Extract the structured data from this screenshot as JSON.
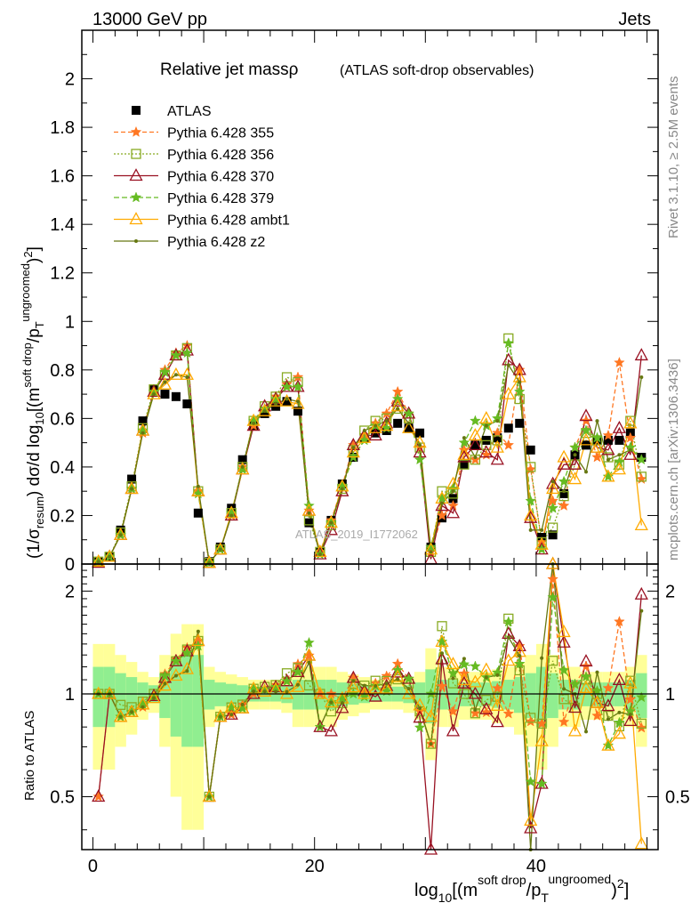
{
  "header": {
    "energy_label": "13000 GeV pp",
    "category_label": "Jets"
  },
  "title": {
    "main": "Relative jet massρ",
    "sub": "(ATLAS soft-drop observables)"
  },
  "side_labels": {
    "rivet": "Rivet 3.1.10, ≥ 2.5M events",
    "mcplots": "mcplots.cern.ch [arXiv:1306.3436]"
  },
  "watermark": "ATLAS_2019_I1772062",
  "upper_axis": {
    "ylabel": "(1/σresum) dσ/d log10[(msoft drop/pTungroomed)2]",
    "yticks": [
      "0",
      "0.2",
      "0.4",
      "0.6",
      "0.8",
      "1",
      "1.2",
      "1.4",
      "1.6",
      "1.8",
      "2"
    ]
  },
  "lower_axis": {
    "ylabel": "Ratio to ATLAS",
    "yticks_left": [
      "0.5",
      "1",
      "2"
    ],
    "yticks_right": [
      "0.5",
      "1",
      "2"
    ]
  },
  "x_axis": {
    "xlabel": "log10[(msoft drop/pTungroomed)2]",
    "xticks": [
      "0",
      "20",
      "40"
    ]
  },
  "legend": [
    {
      "label": "ATLAS",
      "color": "#000000",
      "marker": "square-filled",
      "dash": "none"
    },
    {
      "label": "Pythia 6.428 355",
      "color": "#ff7722",
      "marker": "star",
      "dash": "5,3"
    },
    {
      "label": "Pythia 6.428 356",
      "color": "#88aa22",
      "marker": "square-open",
      "dash": "2,2"
    },
    {
      "label": "Pythia 6.428 370",
      "color": "#991122",
      "marker": "triangle-open",
      "dash": "none"
    },
    {
      "label": "Pythia 6.428 379",
      "color": "#66bb22",
      "marker": "star",
      "dash": "6,3"
    },
    {
      "label": "Pythia 6.428 ambt1",
      "color": "#ffaa00",
      "marker": "triangle-open",
      "dash": "none"
    },
    {
      "label": "Pythia 6.428 z2",
      "color": "#667711",
      "marker": "dot",
      "dash": "none"
    }
  ],
  "chart_data": {
    "type": "line",
    "title": "Relative jet massρ (ATLAS soft-drop observables)",
    "xlabel": "log10[(msoft drop/pTungroomed)2]",
    "ylabel": "(1/σresum) dσ/d log10[(msoft drop/pTungroomed)2]",
    "xlim": [
      -1,
      51
    ],
    "ylim": [
      0,
      2.2
    ],
    "ratio_ylabel": "Ratio to ATLAS",
    "ratio_ylim": [
      0.35,
      2.4
    ],
    "ratio_scale": "log",
    "legend_position": "top-left",
    "grid": false,
    "x": [
      0.5,
      1.5,
      2.5,
      3.5,
      4.5,
      5.5,
      6.5,
      7.5,
      8.5,
      9.5,
      10.5,
      11.5,
      12.5,
      13.5,
      14.5,
      15.5,
      16.5,
      17.5,
      18.5,
      19.5,
      20.5,
      21.5,
      22.5,
      23.5,
      24.5,
      25.5,
      26.5,
      27.5,
      28.5,
      29.5,
      30.5,
      31.5,
      32.5,
      33.5,
      34.5,
      35.5,
      36.5,
      37.5,
      38.5,
      39.5,
      40.5,
      41.5,
      42.5,
      43.5,
      44.5,
      45.5,
      46.5,
      47.5,
      48.5,
      49.5
    ],
    "series": [
      {
        "name": "ATLAS",
        "color": "#000000",
        "values": [
          0.01,
          0.03,
          0.14,
          0.35,
          0.59,
          0.72,
          0.7,
          0.69,
          0.66,
          0.21,
          0.01,
          0.07,
          0.23,
          0.43,
          0.57,
          0.62,
          0.65,
          0.67,
          0.63,
          0.17,
          0.05,
          0.18,
          0.33,
          0.44,
          0.52,
          0.54,
          0.55,
          0.58,
          0.56,
          0.54,
          0.07,
          0.19,
          0.27,
          0.41,
          0.49,
          0.51,
          0.52,
          0.56,
          0.58,
          0.47,
          0.11,
          0.12,
          0.29,
          0.45,
          0.49,
          0.51,
          0.51,
          0.51,
          0.54,
          0.44
        ]
      },
      {
        "name": "Pythia 6.428 355",
        "color": "#ff7722",
        "values": [
          0.005,
          0.03,
          0.12,
          0.31,
          0.54,
          0.71,
          0.8,
          0.87,
          0.9,
          0.3,
          0.005,
          0.06,
          0.2,
          0.4,
          0.57,
          0.64,
          0.69,
          0.74,
          0.77,
          0.22,
          0.05,
          0.18,
          0.32,
          0.49,
          0.53,
          0.58,
          0.62,
          0.71,
          0.62,
          0.48,
          0.05,
          0.2,
          0.24,
          0.47,
          0.43,
          0.45,
          0.54,
          0.49,
          0.8,
          0.39,
          0.09,
          0.26,
          0.24,
          0.48,
          0.59,
          0.44,
          0.53,
          0.83,
          0.52,
          0.35
        ]
      },
      {
        "name": "Pythia 6.428 356",
        "color": "#88aa22",
        "values": [
          0.01,
          0.03,
          0.13,
          0.32,
          0.56,
          0.72,
          0.78,
          0.86,
          0.89,
          0.3,
          0.005,
          0.06,
          0.21,
          0.4,
          0.59,
          0.65,
          0.69,
          0.77,
          0.75,
          0.18,
          0.05,
          0.16,
          0.31,
          0.47,
          0.55,
          0.59,
          0.6,
          0.64,
          0.6,
          0.48,
          0.05,
          0.3,
          0.29,
          0.41,
          0.43,
          0.49,
          0.51,
          0.93,
          0.68,
          0.4,
          0.09,
          0.15,
          0.28,
          0.41,
          0.54,
          0.51,
          0.44,
          0.41,
          0.59,
          0.36
        ]
      },
      {
        "name": "Pythia 6.428 370",
        "color": "#991122",
        "values": [
          0.005,
          0.03,
          0.12,
          0.31,
          0.55,
          0.71,
          0.78,
          0.86,
          0.88,
          0.3,
          0.005,
          0.06,
          0.2,
          0.39,
          0.57,
          0.65,
          0.68,
          0.73,
          0.73,
          0.22,
          0.04,
          0.14,
          0.3,
          0.49,
          0.53,
          0.53,
          0.58,
          0.67,
          0.62,
          0.46,
          0.02,
          0.24,
          0.21,
          0.44,
          0.49,
          0.46,
          0.43,
          0.84,
          0.8,
          0.19,
          0.06,
          0.33,
          0.41,
          0.41,
          0.61,
          0.48,
          0.47,
          0.56,
          0.45,
          0.86
        ]
      },
      {
        "name": "Pythia 6.428 379",
        "color": "#66bb22",
        "values": [
          0.01,
          0.03,
          0.12,
          0.31,
          0.55,
          0.71,
          0.79,
          0.86,
          0.87,
          0.29,
          0.005,
          0.06,
          0.21,
          0.39,
          0.59,
          0.64,
          0.68,
          0.73,
          0.73,
          0.24,
          0.04,
          0.17,
          0.32,
          0.44,
          0.51,
          0.57,
          0.56,
          0.68,
          0.62,
          0.43,
          0.07,
          0.27,
          0.31,
          0.5,
          0.59,
          0.57,
          0.6,
          0.91,
          0.71,
          0.26,
          0.06,
          0.23,
          0.34,
          0.48,
          0.55,
          0.52,
          0.36,
          0.42,
          0.48,
          0.43
        ]
      },
      {
        "name": "Pythia 6.428 ambt1",
        "color": "#ffaa00",
        "values": [
          0.01,
          0.03,
          0.12,
          0.31,
          0.55,
          0.7,
          0.74,
          0.78,
          0.78,
          0.3,
          0.005,
          0.06,
          0.21,
          0.39,
          0.59,
          0.63,
          0.67,
          0.67,
          0.66,
          0.22,
          0.05,
          0.17,
          0.32,
          0.46,
          0.52,
          0.56,
          0.57,
          0.65,
          0.56,
          0.5,
          0.06,
          0.27,
          0.33,
          0.45,
          0.53,
          0.6,
          0.48,
          0.7,
          0.77,
          0.2,
          0.08,
          0.31,
          0.44,
          0.35,
          0.51,
          0.48,
          0.36,
          0.39,
          0.58,
          0.16
        ]
      },
      {
        "name": "Pythia 6.428 z2",
        "color": "#667711",
        "values": [
          0.01,
          0.03,
          0.12,
          0.31,
          0.54,
          0.7,
          0.75,
          0.78,
          0.77,
          0.32,
          0.005,
          0.06,
          0.2,
          0.4,
          0.58,
          0.63,
          0.66,
          0.68,
          0.67,
          0.21,
          0.04,
          0.17,
          0.31,
          0.48,
          0.55,
          0.57,
          0.59,
          0.64,
          0.58,
          0.49,
          0.05,
          0.25,
          0.3,
          0.52,
          0.44,
          0.57,
          0.59,
          0.82,
          0.75,
          0.14,
          0.14,
          0.34,
          0.3,
          0.45,
          0.38,
          0.59,
          0.43,
          0.45,
          0.47,
          0.77
        ]
      }
    ],
    "ratio_band_relative_uncertainty": [
      0.2,
      0.2,
      0.15,
      0.12,
      0.08,
      0.06,
      0.15,
      0.25,
      0.3,
      0.3,
      0.1,
      0.08,
      0.07,
      0.06,
      0.05,
      0.05,
      0.05,
      0.06,
      0.1,
      0.1,
      0.1,
      0.1,
      0.08,
      0.07,
      0.06,
      0.05,
      0.05,
      0.05,
      0.06,
      0.08,
      0.18,
      0.1,
      0.1,
      0.08,
      0.08,
      0.08,
      0.09,
      0.1,
      0.12,
      0.15,
      0.2,
      0.15,
      0.1,
      0.1,
      0.08,
      0.08,
      0.08,
      0.08,
      0.1,
      0.15
    ]
  }
}
